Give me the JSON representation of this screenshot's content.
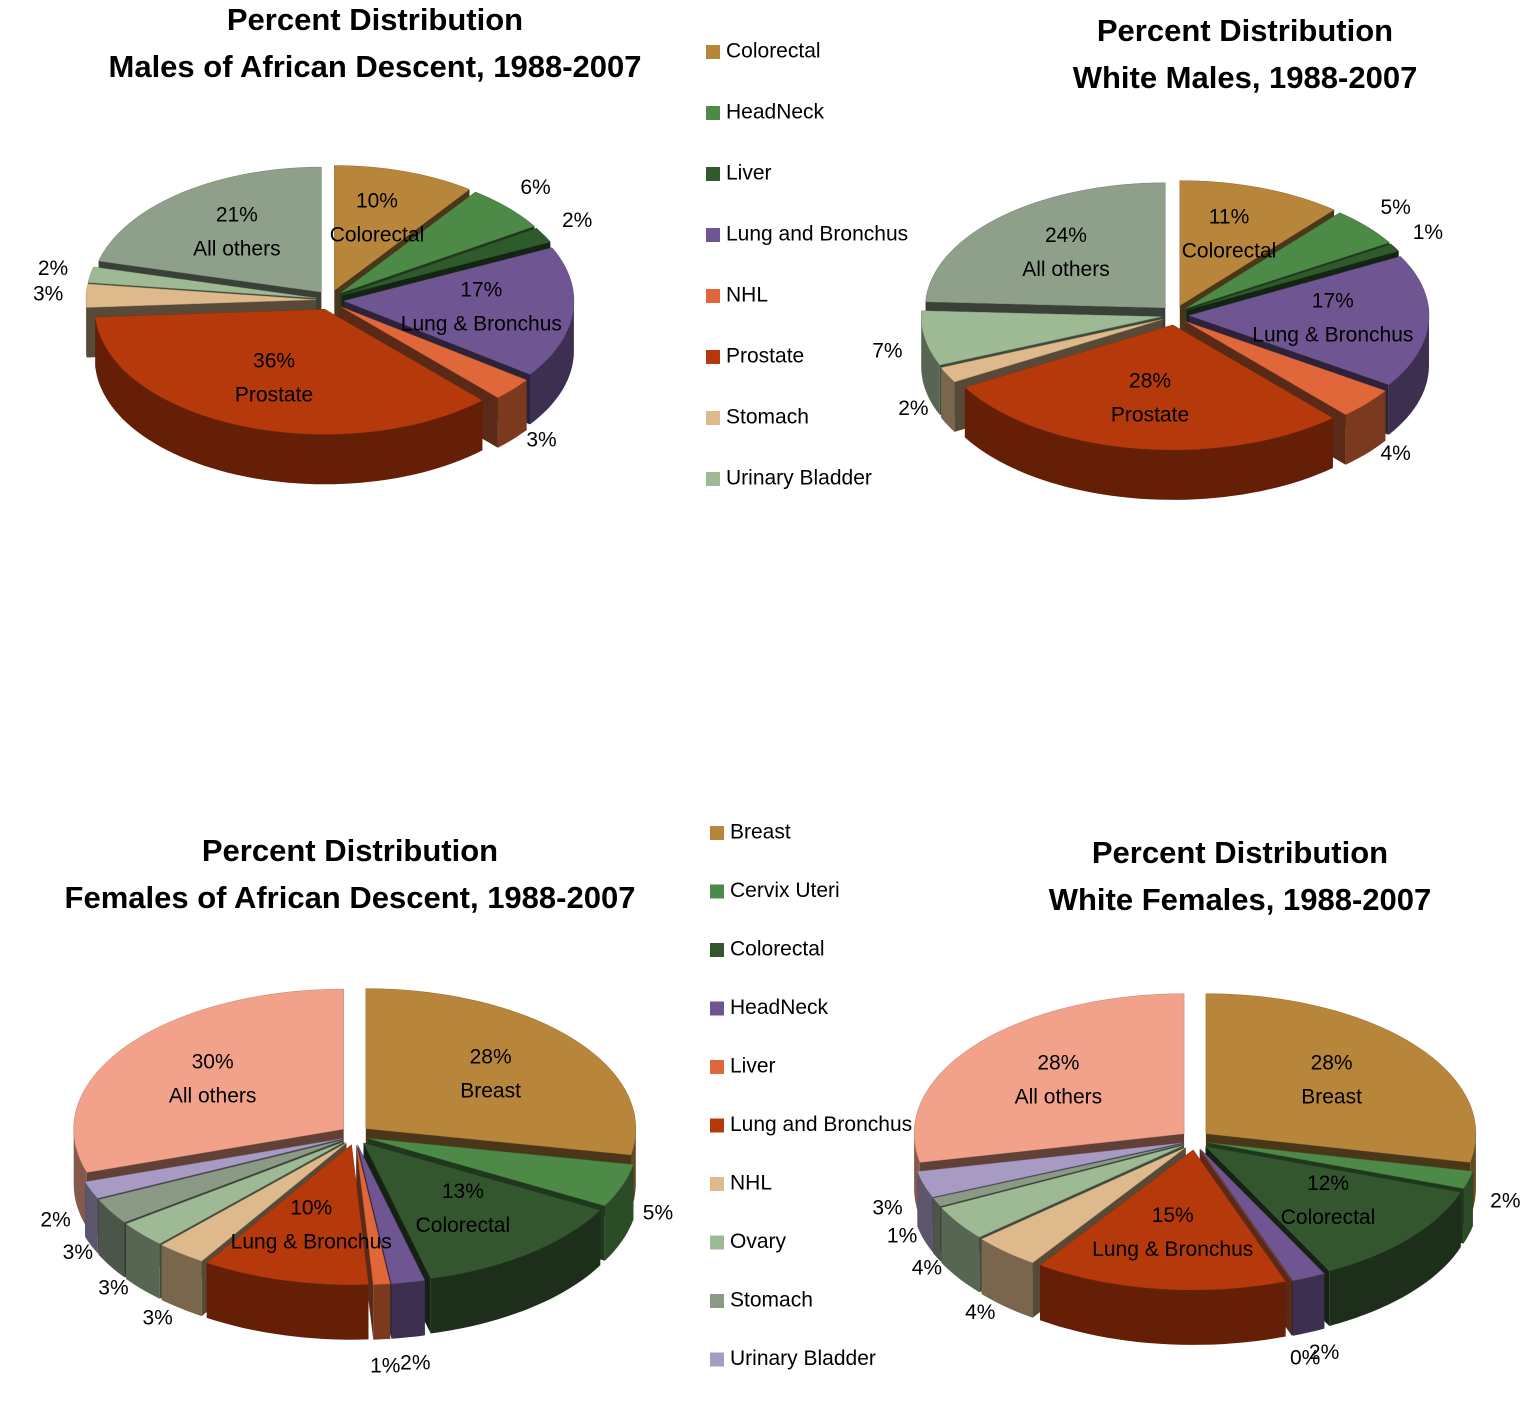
{
  "chart_data": [
    {
      "type": "pie",
      "title": "Percent Distribution",
      "subtitle": "Males of African Descent, 1988-2007",
      "legend": true,
      "categories": [
        "Colorectal",
        "HeadNeck",
        "Liver",
        "Lung and Bronchus",
        "NHL",
        "Prostate",
        "Stomach",
        "Urinary Bladder"
      ],
      "values": [
        10,
        6,
        2,
        17,
        3,
        36,
        3,
        2
      ],
      "value_labels": [
        "10%",
        "6%",
        "2%",
        "17%",
        "3%",
        "36%",
        "3%",
        "2%"
      ],
      "slice_labels": [
        "Colorectal",
        null,
        null,
        "Lung & Bronchus",
        null,
        "Prostate",
        null,
        null
      ],
      "colors": [
        "#b8863b",
        "#4e8a47",
        "#2f5a2c",
        "#6f5592",
        "#e0673a",
        "#b5390a",
        "#ddb98c",
        "#9dba95"
      ],
      "other": {
        "label": "All others",
        "value": 21,
        "value_label": "21%",
        "color": "#8fa08a"
      }
    },
    {
      "type": "pie",
      "title": "Percent Distribution",
      "subtitle": "White Males, 1988-2007",
      "legend": false,
      "categories": [
        "Colorectal",
        "HeadNeck",
        "Liver",
        "Lung and Bronchus",
        "NHL",
        "Prostate",
        "Stomach",
        "Urinary Bladder"
      ],
      "values": [
        11,
        5,
        1,
        17,
        4,
        28,
        2,
        7
      ],
      "value_labels": [
        "11%",
        "5%",
        "1%",
        "17%",
        "4%",
        "28%",
        "2%",
        "7%"
      ],
      "slice_labels": [
        "Colorectal",
        null,
        null,
        "Lung & Bronchus",
        null,
        "Prostate",
        null,
        null
      ],
      "colors": [
        "#b8863b",
        "#4e8a47",
        "#2f5a2c",
        "#6f5592",
        "#e0673a",
        "#b5390a",
        "#ddb98c",
        "#9dba95"
      ],
      "other": {
        "label": "All others",
        "value": 24,
        "value_label": "24%",
        "color": "#8fa08a"
      }
    },
    {
      "type": "pie",
      "title": "Percent Distribution",
      "subtitle": "Females of African Descent, 1988-2007",
      "legend": true,
      "categories": [
        "Breast",
        "Cervix Uteri",
        "Colorectal",
        "HeadNeck",
        "Liver",
        "Lung and Bronchus",
        "NHL",
        "Ovary",
        "Stomach",
        "Urinary Bladder"
      ],
      "values": [
        28,
        5,
        13,
        2,
        1,
        10,
        3,
        3,
        3,
        2
      ],
      "value_labels": [
        "28%",
        "5%",
        "13%",
        "2%",
        "1%",
        "10%",
        "3%",
        "3%",
        "3%",
        "2%"
      ],
      "slice_labels": [
        "Breast",
        null,
        "Colorectal",
        null,
        null,
        "Lung & Bronchus",
        null,
        null,
        null,
        null
      ],
      "colors": [
        "#b8863b",
        "#4e8a47",
        "#34562f",
        "#6f5592",
        "#e0673a",
        "#b5390a",
        "#ddb98c",
        "#9dba95",
        "#8a9a85",
        "#a79bc4"
      ],
      "other": {
        "label": "All others",
        "value": 30,
        "value_label": "30%",
        "color": "#f2a28a"
      }
    },
    {
      "type": "pie",
      "title": "Percent Distribution",
      "subtitle": "White Females, 1988-2007",
      "legend": false,
      "categories": [
        "Breast",
        "Cervix Uteri",
        "Colorectal",
        "HeadNeck",
        "Liver",
        "Lung and Bronchus",
        "NHL",
        "Ovary",
        "Stomach",
        "Urinary Bladder"
      ],
      "values": [
        28,
        2,
        12,
        2,
        0,
        15,
        4,
        4,
        1,
        3
      ],
      "value_labels": [
        "28%",
        "2%",
        "12%",
        "2%",
        "0%",
        "15%",
        "4%",
        "4%",
        "1%",
        "3%"
      ],
      "slice_labels": [
        "Breast",
        null,
        "Colorectal",
        null,
        null,
        "Lung & Bronchus",
        null,
        null,
        null,
        null
      ],
      "colors": [
        "#b8863b",
        "#4e8a47",
        "#34562f",
        "#6f5592",
        "#e0673a",
        "#b5390a",
        "#ddb98c",
        "#9dba95",
        "#8a9a85",
        "#a79bc4"
      ],
      "other": {
        "label": "All others",
        "value": 28,
        "value_label": "28%",
        "color": "#f2a28a"
      }
    }
  ]
}
